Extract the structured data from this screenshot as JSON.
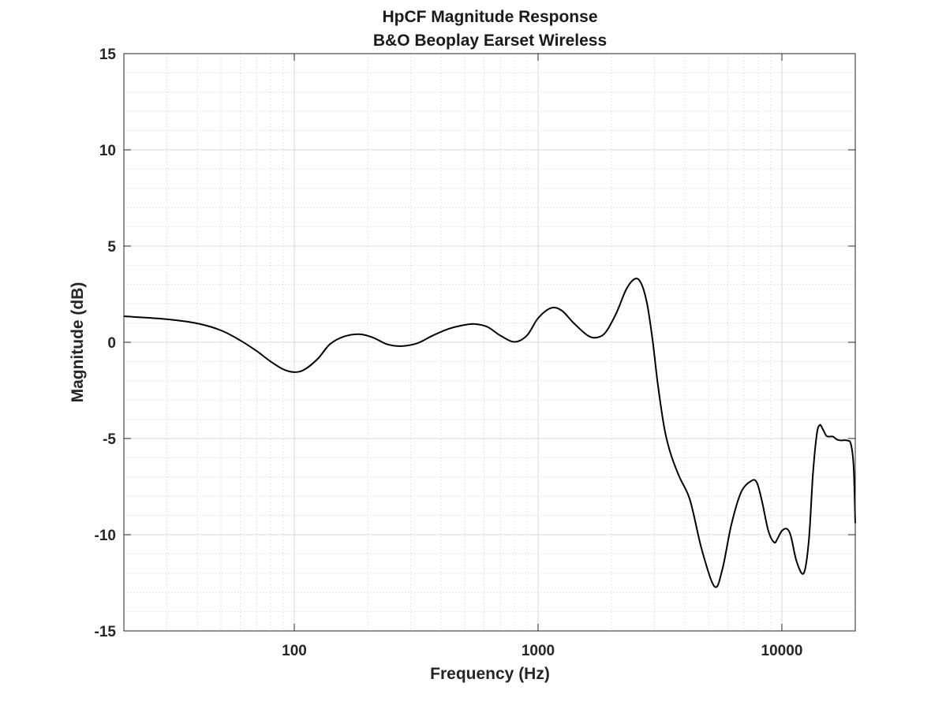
{
  "chart_data": {
    "type": "line",
    "title": [
      "HpCF Magnitude Response",
      "B&O Beoplay Earset Wireless"
    ],
    "xlabel": "Frequency (Hz)",
    "ylabel": "Magnitude (dB)",
    "xscale": "log",
    "xlim": [
      20,
      20000
    ],
    "ylim": [
      -15,
      15
    ],
    "xticks": [
      100,
      1000,
      10000
    ],
    "xtick_labels": [
      "100",
      "1000",
      "10000"
    ],
    "yticks": [
      15,
      10,
      5,
      0,
      -5,
      -10,
      -15
    ],
    "ytick_labels": [
      "15",
      "10",
      "5",
      "0",
      "-5",
      "-10",
      "-15"
    ],
    "grid": true,
    "minor_grid": true,
    "series": [
      {
        "name": "B&O Beoplay Earset Wireless",
        "color": "#000000",
        "x": [
          20,
          30,
          40,
          50,
          60,
          70,
          80,
          90,
          100,
          110,
          125,
          140,
          160,
          185,
          210,
          240,
          275,
          320,
          370,
          430,
          500,
          550,
          620,
          700,
          800,
          900,
          1000,
          1130,
          1250,
          1400,
          1600,
          1750,
          1900,
          2100,
          2300,
          2500,
          2650,
          2800,
          2950,
          3100,
          3300,
          3500,
          3800,
          4200,
          4700,
          5300,
          5700,
          6200,
          6800,
          7500,
          7900,
          8300,
          8800,
          9300,
          9600,
          10000,
          10500,
          10900,
          11500,
          12300,
          12900,
          13400,
          13900,
          14300,
          14700,
          15200,
          15600,
          16200,
          16800,
          17500,
          18500,
          19200,
          19700,
          20000
        ],
        "y": [
          1.35,
          1.2,
          0.98,
          0.62,
          0.1,
          -0.45,
          -1.0,
          -1.4,
          -1.55,
          -1.42,
          -0.85,
          -0.1,
          0.3,
          0.42,
          0.25,
          -0.1,
          -0.2,
          -0.05,
          0.35,
          0.7,
          0.9,
          0.95,
          0.8,
          0.35,
          0.02,
          0.35,
          1.25,
          1.78,
          1.65,
          1.0,
          0.35,
          0.25,
          0.55,
          1.55,
          2.75,
          3.3,
          3.05,
          2.0,
          0.1,
          -2.2,
          -4.5,
          -5.8,
          -7.0,
          -8.2,
          -10.8,
          -12.7,
          -11.8,
          -9.5,
          -7.8,
          -7.2,
          -7.3,
          -8.3,
          -9.8,
          -10.4,
          -10.2,
          -9.8,
          -9.7,
          -10.1,
          -11.4,
          -12.0,
          -10.3,
          -6.9,
          -4.8,
          -4.3,
          -4.5,
          -4.85,
          -4.9,
          -4.9,
          -5.05,
          -5.1,
          -5.1,
          -5.3,
          -6.5,
          -9.4
        ]
      }
    ]
  }
}
